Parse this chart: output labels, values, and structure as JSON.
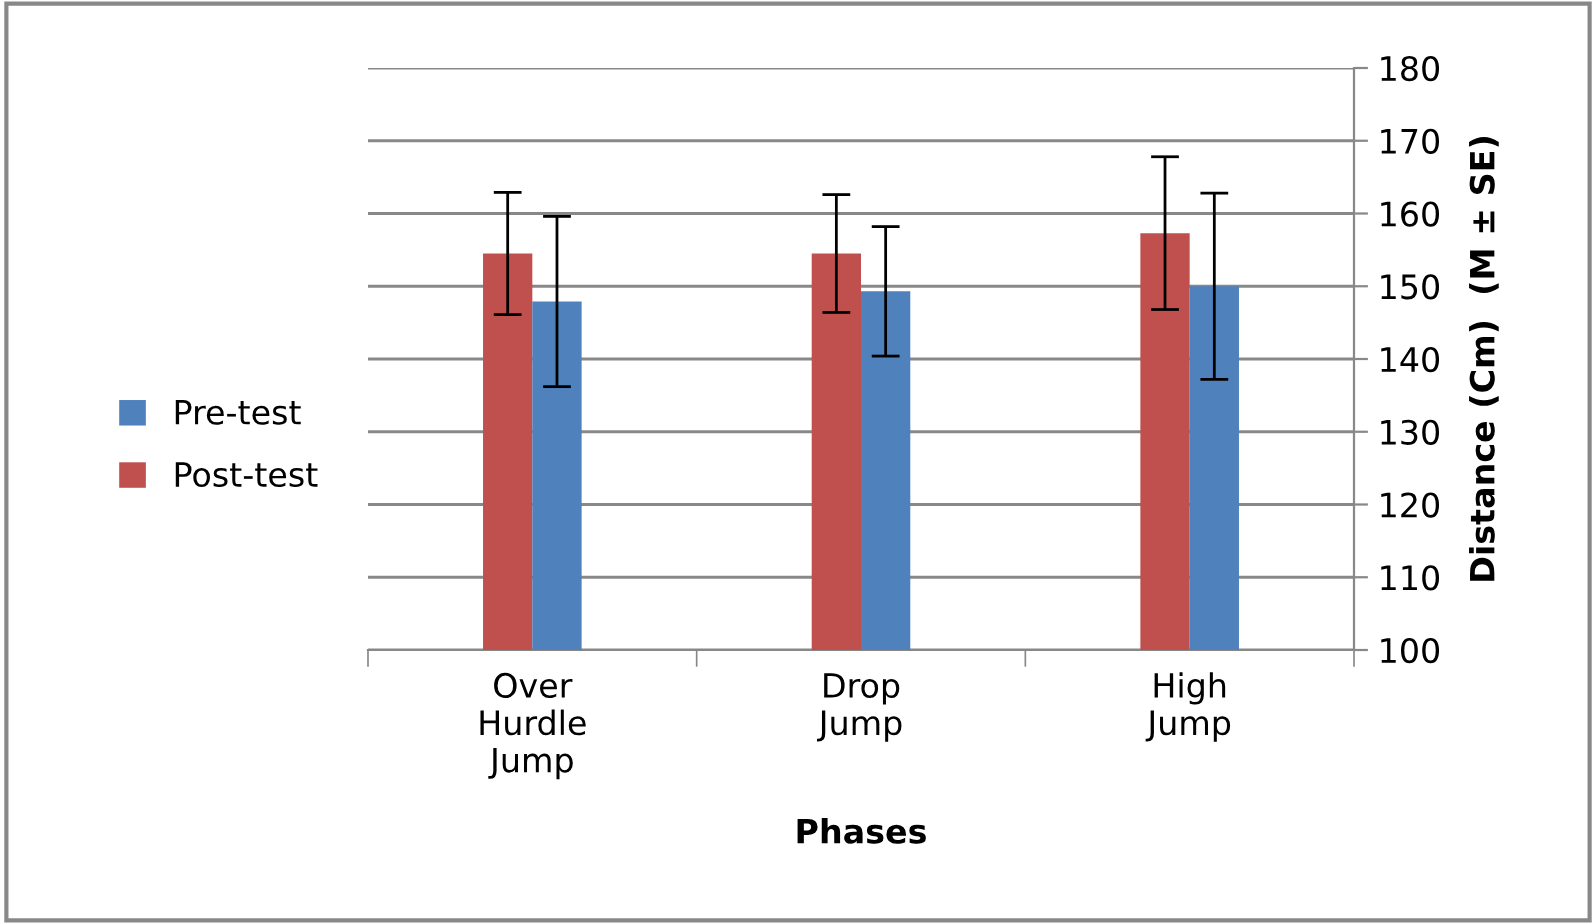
{
  "chart_data": {
    "type": "bar",
    "xlabel": "Phases",
    "ylabel": "Distance (Cm)  (M ± SE)",
    "categories": [
      "Over\nHurdle\nJump",
      "Drop\nJump",
      "High\nJump"
    ],
    "series": [
      {
        "name": "Post-test",
        "color": "#c0504d",
        "values": [
          154.5,
          154.5,
          157.3
        ],
        "errors": [
          8.4,
          8.1,
          10.5
        ]
      },
      {
        "name": "Pre-test",
        "color": "#4f81bd",
        "values": [
          147.9,
          149.3,
          150.0
        ],
        "errors": [
          11.7,
          8.9,
          12.8
        ]
      }
    ],
    "ylim": [
      100,
      180
    ],
    "yticks": [
      100,
      110,
      120,
      130,
      140,
      150,
      160,
      170,
      180
    ],
    "grid": "y",
    "legend": "left"
  }
}
